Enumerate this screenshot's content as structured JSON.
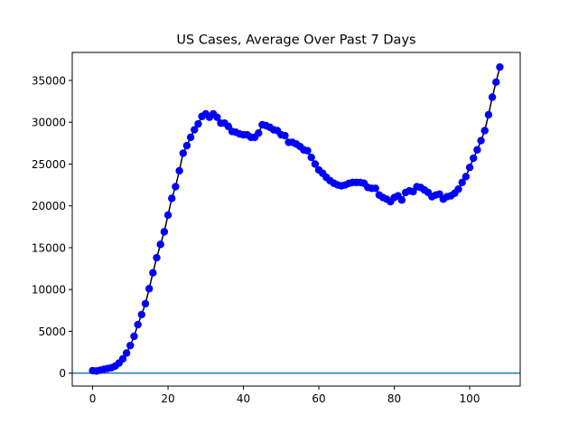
{
  "chart_data": {
    "type": "line",
    "title": "US Cases, Average Over Past 7 Days",
    "xlabel": "",
    "ylabel": "",
    "xlim": [
      -5.4,
      113.4
    ],
    "ylim": [
      -1550,
      38350
    ],
    "xticks": [
      0,
      20,
      40,
      60,
      80,
      100
    ],
    "yticks": [
      0,
      5000,
      10000,
      15000,
      20000,
      25000,
      30000,
      35000
    ],
    "grid": false,
    "legend": "none",
    "series": [
      {
        "color": "#0000ff",
        "marker": "circle",
        "x": [
          0,
          1,
          2,
          3,
          4,
          5,
          6,
          7,
          8,
          9,
          10,
          11,
          12,
          13,
          14,
          15,
          16,
          17,
          18,
          19,
          20,
          21,
          22,
          23,
          24,
          25,
          26,
          27,
          28,
          29,
          30,
          31,
          32,
          33,
          34,
          35,
          36,
          37,
          38,
          39,
          40,
          41,
          42,
          43,
          44,
          45,
          46,
          47,
          48,
          49,
          50,
          51,
          52,
          53,
          54,
          55,
          56,
          57,
          58,
          59,
          60,
          61,
          62,
          63,
          64,
          65,
          66,
          67,
          68,
          69,
          70,
          71,
          72,
          73,
          74,
          75,
          76,
          77,
          78,
          79,
          80,
          81,
          82,
          83,
          84,
          85,
          86,
          87,
          88,
          89,
          90,
          91,
          92,
          93,
          94,
          95,
          96,
          97,
          98,
          99,
          100,
          101,
          102,
          103,
          104,
          105,
          106,
          107,
          108
        ],
        "y": [
          300,
          250,
          350,
          450,
          550,
          650,
          850,
          1200,
          1700,
          2400,
          3300,
          4400,
          5800,
          7000,
          8300,
          10100,
          12000,
          13800,
          15400,
          16900,
          18900,
          20900,
          22300,
          24200,
          26300,
          27200,
          28200,
          29100,
          29800,
          30700,
          31000,
          30600,
          31000,
          30600,
          29900,
          29900,
          29500,
          28900,
          28800,
          28600,
          28500,
          28500,
          28200,
          28200,
          28700,
          29700,
          29600,
          29400,
          29100,
          29000,
          28500,
          28400,
          27600,
          27600,
          27400,
          27100,
          26700,
          26600,
          25800,
          25000,
          24300,
          23900,
          23400,
          23000,
          22700,
          22500,
          22400,
          22500,
          22700,
          22800,
          22800,
          22800,
          22700,
          22200,
          22100,
          22100,
          21300,
          21000,
          20800,
          20500,
          21000,
          21200,
          20700,
          21600,
          21800,
          21700,
          22300,
          22200,
          21900,
          21600,
          21100,
          21300,
          21400,
          20800,
          21100,
          21200,
          21500,
          22000,
          22800,
          23500,
          24600,
          25700,
          26700,
          27800,
          29000,
          30900,
          33000,
          34800,
          36600
        ]
      }
    ],
    "hlines": [
      {
        "y": 0,
        "color": "#1f77b4"
      }
    ]
  }
}
